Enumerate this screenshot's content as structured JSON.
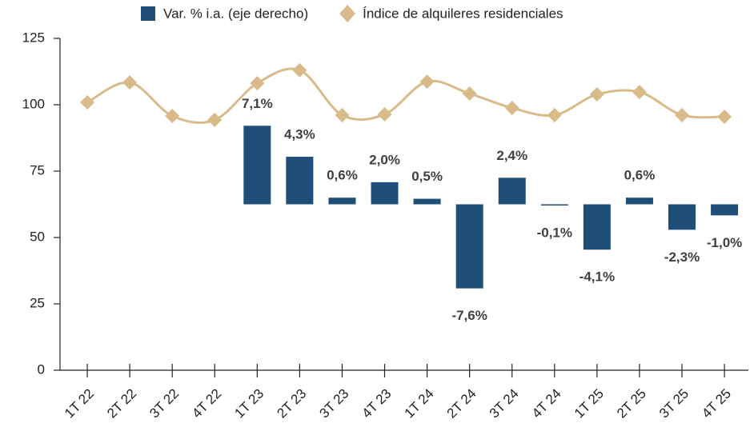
{
  "chart_data": {
    "type": "bar-line",
    "categories": [
      "1T 22",
      "2T 22",
      "3T 22",
      "4T 22",
      "1T 23",
      "2T 23",
      "3T 23",
      "4T 23",
      "1T 24",
      "2T 24",
      "3T 24",
      "4T 24",
      "1T 25",
      "2T 25",
      "3T 25",
      "4T 25"
    ],
    "series": [
      {
        "name": "Var. % i.a. (eje derecho)",
        "type": "bar",
        "color": "#1f4e79",
        "axis": "y2",
        "values": [
          null,
          null,
          null,
          null,
          7.1,
          4.3,
          0.6,
          2.0,
          0.5,
          -7.6,
          2.4,
          -0.1,
          -4.1,
          0.6,
          -2.3,
          -1.0
        ],
        "value_labels": [
          null,
          null,
          null,
          null,
          "7,1%",
          "4,3%",
          "0,6%",
          "2,0%",
          "0,5%",
          "-7,6%",
          "2,4%",
          "-0,1%",
          "-4,1%",
          "0,6%",
          "-2,3%",
          "-1,0%"
        ]
      },
      {
        "name": "Índice de alquileres residenciales",
        "type": "line",
        "color": "#d9bb8a",
        "axis": "y",
        "values": [
          100.9,
          108.4,
          95.8,
          94.3,
          108.1,
          113,
          96.1,
          96.4,
          108.7,
          104.2,
          98.8,
          96.1,
          103.9,
          104.8,
          96.1,
          95.5
        ]
      }
    ],
    "ylim": [
      0,
      125
    ],
    "yticks": [
      0,
      25,
      50,
      75,
      100,
      125
    ],
    "y2lim": [
      -15,
      15
    ],
    "legend": "top"
  }
}
